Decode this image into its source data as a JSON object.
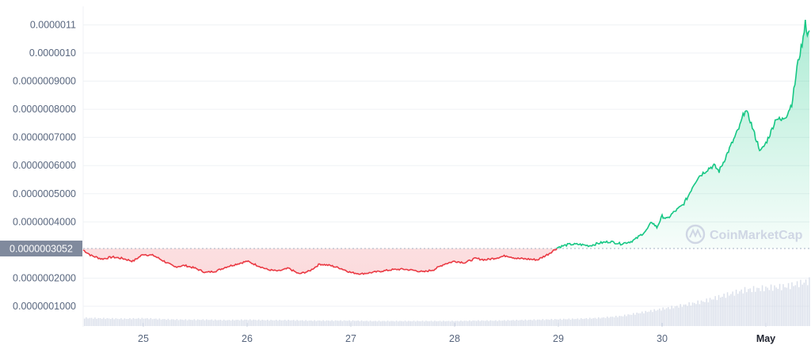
{
  "chart_data": {
    "type": "line",
    "watermark": "CoinMarketCap",
    "reference_price": 3.052e-07,
    "reference_label": "0.0000003052",
    "y_ticks": [
      "0.0000011",
      "0.0000010",
      "0.0000009000",
      "0.0000008000",
      "0.0000007000",
      "0.0000006000",
      "0.0000005000",
      "0.0000004000",
      "0.0000002000",
      "0.0000001000"
    ],
    "y_tick_values": [
      1.1e-06,
      1e-06,
      9e-07,
      8e-07,
      7e-07,
      6e-07,
      5e-07,
      4e-07,
      2e-07,
      1e-07
    ],
    "ylim": [
      5e-08,
      1.13e-06
    ],
    "x_ticks": [
      "25",
      "26",
      "27",
      "28",
      "29",
      "30",
      "May"
    ],
    "x_tick_days": [
      25,
      26,
      27,
      28,
      29,
      30,
      31
    ],
    "xlim_days": [
      24.42,
      31.42
    ],
    "x_unit": "day (Apr)",
    "colors": {
      "up": "#16c784",
      "down": "#ea3943",
      "volume": "#cfd6e4",
      "grid": "#eff2f5",
      "ref_box": "#808a9d"
    },
    "series": [
      {
        "x": [
          24.42,
          24.5,
          24.6,
          24.7,
          24.8,
          24.9,
          25.0,
          25.1,
          25.2,
          25.3,
          25.4,
          25.5,
          25.6,
          25.7,
          25.8,
          25.9,
          26.0,
          26.1,
          26.2,
          26.3,
          26.4,
          26.5,
          26.6,
          26.7,
          26.8,
          26.9,
          27.0,
          27.1,
          27.2,
          27.3,
          27.4,
          27.5,
          27.6,
          27.7,
          27.8,
          27.9,
          28.0,
          28.1,
          28.2,
          28.3,
          28.4,
          28.5,
          28.6,
          28.7,
          28.8,
          28.9,
          29.0,
          29.1,
          29.2,
          29.3,
          29.4,
          29.5,
          29.6,
          29.7,
          29.75,
          29.85,
          29.9,
          29.95,
          30.0,
          30.05,
          30.1,
          30.2,
          30.25,
          30.3,
          30.35,
          30.45,
          30.5,
          30.55,
          30.6,
          30.65,
          30.7,
          30.75,
          30.8,
          30.85,
          30.9,
          30.95,
          31.0,
          31.05,
          31.1,
          31.15,
          31.2,
          31.25,
          31.28,
          31.3,
          31.33,
          31.36,
          31.38,
          31.4,
          31.42
        ],
        "y": [
          3e-07,
          2.8e-07,
          2.68e-07,
          2.75e-07,
          2.7e-07,
          2.6e-07,
          2.85e-07,
          2.8e-07,
          2.6e-07,
          2.4e-07,
          2.45e-07,
          2.35e-07,
          2.2e-07,
          2.25e-07,
          2.4e-07,
          2.5e-07,
          2.6e-07,
          2.45e-07,
          2.3e-07,
          2.25e-07,
          2.35e-07,
          2.15e-07,
          2.25e-07,
          2.5e-07,
          2.45e-07,
          2.35e-07,
          2.2e-07,
          2.15e-07,
          2.2e-07,
          2.25e-07,
          2.3e-07,
          2.32e-07,
          2.28e-07,
          2.22e-07,
          2.3e-07,
          2.5e-07,
          2.6e-07,
          2.55e-07,
          2.7e-07,
          2.65e-07,
          2.72e-07,
          2.8e-07,
          2.7e-07,
          2.68e-07,
          2.65e-07,
          2.85e-07,
          3.1e-07,
          3.2e-07,
          3.2e-07,
          3.15e-07,
          3.25e-07,
          3.3e-07,
          3.22e-07,
          3.3e-07,
          3.4e-07,
          3.7e-07,
          4e-07,
          3.8e-07,
          4.2e-07,
          4.1e-07,
          4.3e-07,
          4.6e-07,
          4.9e-07,
          5.3e-07,
          5.6e-07,
          5.9e-07,
          6e-07,
          5.8e-07,
          6.2e-07,
          6.6e-07,
          7e-07,
          7.4e-07,
          8e-07,
          7.6e-07,
          7e-07,
          6.5e-07,
          6.8e-07,
          7.2e-07,
          7.7e-07,
          7.6e-07,
          7.8e-07,
          8.2e-07,
          8.9e-07,
          9.5e-07,
          1e-06,
          1.05e-06,
          1.12e-06,
          1.06e-06,
          1.08e-06
        ]
      }
    ],
    "volume": {
      "x": [
        24.42,
        24.6,
        24.8,
        25.0,
        25.2,
        25.4,
        25.6,
        25.8,
        26.0,
        26.2,
        26.4,
        26.6,
        26.8,
        27.0,
        27.2,
        27.4,
        27.6,
        27.8,
        28.0,
        28.2,
        28.4,
        28.6,
        28.8,
        29.0,
        29.2,
        29.4,
        29.6,
        29.8,
        30.0,
        30.2,
        30.4,
        30.6,
        30.8,
        31.0,
        31.2,
        31.42
      ],
      "v": [
        0.18,
        0.17,
        0.16,
        0.17,
        0.15,
        0.14,
        0.14,
        0.13,
        0.14,
        0.13,
        0.13,
        0.12,
        0.12,
        0.12,
        0.11,
        0.11,
        0.11,
        0.11,
        0.11,
        0.12,
        0.12,
        0.13,
        0.14,
        0.15,
        0.16,
        0.18,
        0.22,
        0.3,
        0.38,
        0.46,
        0.55,
        0.68,
        0.8,
        0.84,
        0.88,
        1.0
      ]
    }
  }
}
